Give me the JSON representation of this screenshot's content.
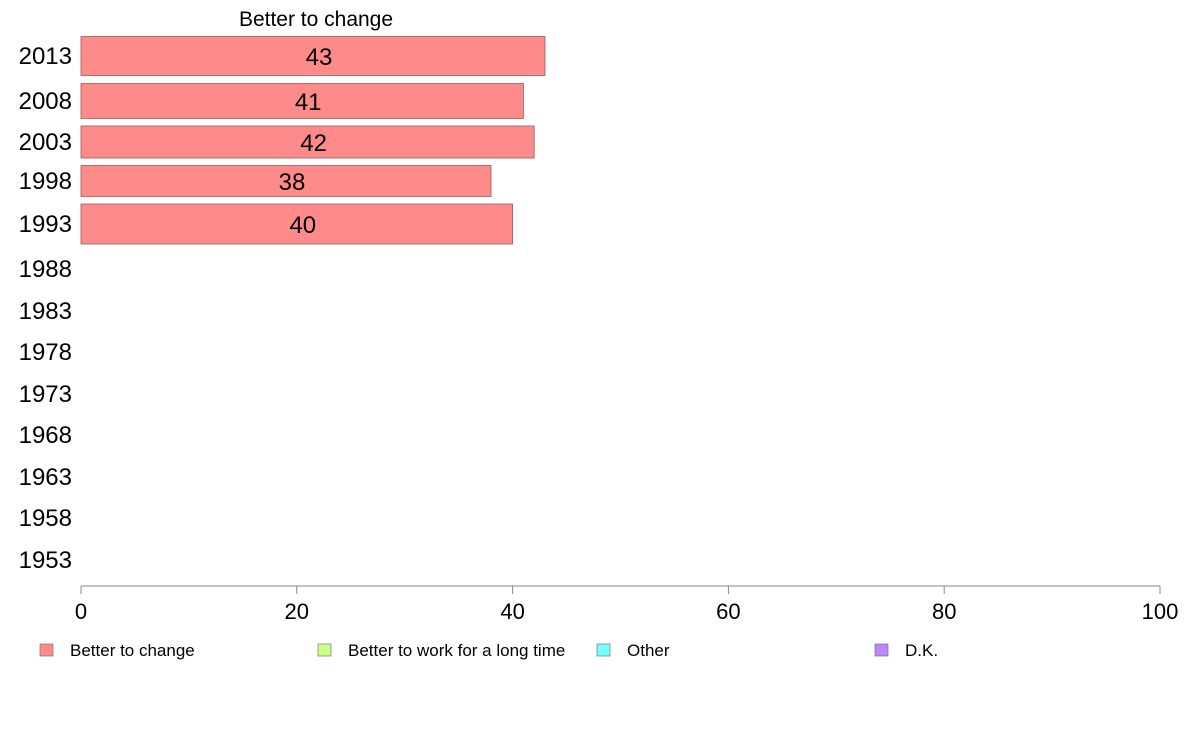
{
  "chart_data": {
    "type": "bar",
    "orientation": "horizontal",
    "title": "Better to change",
    "xlabel": "",
    "ylabel": "",
    "categories": [
      "2013",
      "2008",
      "2003",
      "1998",
      "1993",
      "1988",
      "1983",
      "1978",
      "1973",
      "1968",
      "1963",
      "1958",
      "1953"
    ],
    "series": [
      {
        "name": "Better to change",
        "color": "#ff8a8a",
        "values": [
          43,
          41,
          42,
          38,
          40,
          null,
          null,
          null,
          null,
          null,
          null,
          null,
          null
        ]
      }
    ],
    "xlim": [
      0,
      100
    ],
    "xticks": [
      "0",
      "20",
      "40",
      "60",
      "80",
      "100"
    ],
    "data_labels": true,
    "grid": false,
    "legend_position": "bottom",
    "legend": [
      {
        "label": "Better to change",
        "color": "#ff8a8a"
      },
      {
        "label": "Better to work for a long time",
        "color": "#ccff88"
      },
      {
        "label": "Other",
        "color": "#77ffff"
      },
      {
        "label": "D.K.",
        "color": "#bb88ff"
      }
    ]
  }
}
